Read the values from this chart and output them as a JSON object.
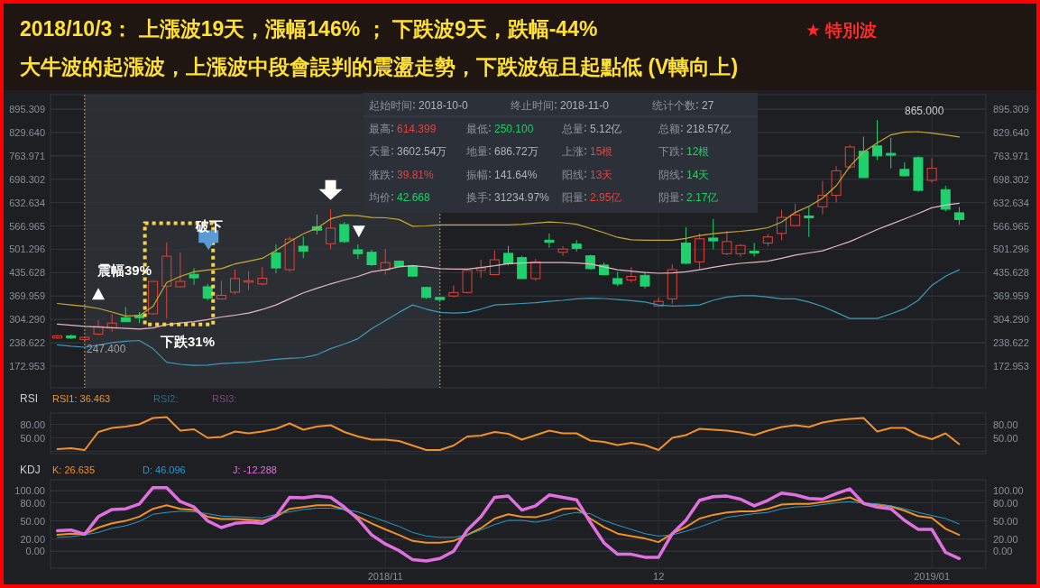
{
  "chart_data": [
    {
      "type": "candlestick",
      "title": "2018/10/3： 上漲波19天，漲幅146% ； 下跌波9天，跌幅-44%",
      "subtitle": "大牛波的起漲波，上漲波中段會誤判的震盪走勢，下跌波短且起點低 (V轉向上)",
      "categories": [
        null,
        null,
        null,
        null,
        null,
        null,
        null,
        null,
        null,
        null,
        null,
        null,
        null,
        null,
        null,
        null,
        null,
        null,
        null,
        null,
        null,
        null,
        null,
        null,
        "2018/11",
        null,
        null,
        null,
        null,
        null,
        null,
        null,
        null,
        null,
        null,
        null,
        null,
        null,
        null,
        null,
        null,
        null,
        null,
        null,
        "12",
        null,
        null,
        null,
        null,
        null,
        null,
        null,
        null,
        null,
        null,
        null,
        null,
        null,
        null,
        null,
        null,
        null,
        null,
        null,
        "2019/01",
        null,
        null
      ],
      "ohlc": [
        [
          252,
          260,
          250,
          258
        ],
        [
          258,
          262,
          249,
          252
        ],
        [
          248,
          256,
          247.4,
          254
        ],
        [
          263,
          302,
          260,
          284
        ],
        [
          280,
          319,
          269,
          294
        ],
        [
          309,
          339,
          297,
          298
        ],
        [
          315,
          325,
          294,
          309
        ],
        [
          320,
          412,
          318,
          411
        ],
        [
          398,
          520,
          307,
          482
        ],
        [
          396,
          493,
          395,
          411
        ],
        [
          431,
          448,
          402,
          421
        ],
        [
          396,
          404,
          358,
          364
        ],
        [
          362,
          413,
          360,
          372
        ],
        [
          381,
          444,
          375,
          419
        ],
        [
          409,
          440,
          387,
          413
        ],
        [
          404,
          451,
          400,
          420
        ],
        [
          491,
          515,
          434,
          449
        ],
        [
          444,
          537,
          438,
          530
        ],
        [
          510,
          537,
          476,
          496
        ],
        [
          565,
          599,
          543,
          555
        ],
        [
          517,
          614,
          502,
          561
        ],
        [
          571,
          578,
          519,
          523
        ],
        [
          500,
          515,
          474,
          489
        ],
        [
          493,
          500,
          455,
          458
        ],
        [
          443,
          502,
          430,
          464
        ],
        [
          468,
          470,
          450,
          453
        ],
        [
          455,
          458,
          424,
          426
        ],
        [
          394,
          396,
          362,
          366
        ],
        [
          366,
          367,
          359,
          360
        ],
        [
          370,
          400,
          366,
          380
        ],
        [
          380,
          444,
          377,
          442
        ],
        [
          442,
          472,
          421,
          449
        ],
        [
          430,
          498,
          428,
          472
        ],
        [
          490,
          511,
          456,
          461
        ],
        [
          478,
          483,
          418,
          419
        ],
        [
          419,
          474,
          413,
          466
        ],
        [
          527,
          546,
          506,
          521
        ],
        [
          493,
          510,
          483,
          502
        ],
        [
          516,
          527,
          495,
          504
        ],
        [
          483,
          486,
          444,
          447
        ],
        [
          457,
          464,
          428,
          430
        ],
        [
          419,
          438,
          398,
          404
        ],
        [
          415,
          451,
          408,
          425
        ],
        [
          428,
          438,
          391,
          398
        ],
        [
          342,
          366,
          341,
          355
        ],
        [
          362,
          459,
          348,
          444
        ],
        [
          519,
          563,
          460,
          462
        ],
        [
          466,
          546,
          444,
          531
        ],
        [
          533,
          587,
          501,
          525
        ],
        [
          489,
          553,
          485,
          523
        ],
        [
          489,
          516,
          481,
          512
        ],
        [
          496,
          519,
          481,
          491
        ],
        [
          519,
          544,
          510,
          536
        ],
        [
          546,
          612,
          527,
          591
        ],
        [
          568,
          630,
          566,
          598
        ],
        [
          595,
          621,
          536,
          590
        ],
        [
          621,
          693,
          600,
          653
        ],
        [
          653,
          735,
          633,
          722
        ],
        [
          733,
          795,
          728,
          789
        ],
        [
          777,
          818,
          703,
          703
        ],
        [
          792,
          865,
          752,
          764
        ],
        [
          771,
          815,
          729,
          766
        ],
        [
          726,
          746,
          706,
          708
        ],
        [
          759,
          763,
          663,
          667
        ],
        [
          695,
          758,
          688,
          729
        ],
        [
          669,
          680,
          608,
          614
        ],
        [
          604,
          620,
          570,
          585
        ]
      ],
      "series": [
        {
          "type": "line",
          "color": "#c8a832",
          "values": [
            349,
            345,
            341,
            335,
            325,
            314,
            315,
            341,
            408,
            425,
            438,
            443,
            447,
            460,
            468,
            476,
            498,
            523,
            545,
            561,
            587,
            597,
            596,
            591,
            590,
            585,
            566,
            567,
            570,
            570,
            570,
            570,
            570,
            570,
            572,
            575,
            578,
            576,
            572,
            560,
            548,
            535,
            528,
            527,
            527,
            527,
            532,
            540,
            545,
            549,
            552,
            556,
            562,
            578,
            605,
            622,
            645,
            680,
            735,
            775,
            800,
            823,
            831,
            832,
            828,
            823,
            817
          ]
        },
        {
          "type": "line",
          "color": "#e6b6c6",
          "values": [
            291,
            288,
            285,
            283,
            281,
            279,
            277,
            280,
            290,
            294,
            298,
            304,
            311,
            316,
            322,
            332,
            345,
            362,
            379,
            392,
            404,
            415,
            425,
            438,
            444,
            452,
            455,
            452,
            447,
            446,
            446,
            450,
            455,
            461,
            463,
            464,
            464,
            464,
            463,
            460,
            452,
            444,
            440,
            436,
            434,
            435,
            438,
            444,
            451,
            457,
            462,
            465,
            468,
            476,
            485,
            491,
            497,
            510,
            523,
            540,
            557,
            572,
            587,
            602,
            618,
            626,
            631
          ]
        },
        {
          "type": "line",
          "color": "#3a9ab8",
          "values": [
            233,
            229,
            226,
            232,
            239,
            243,
            245,
            222,
            184,
            178,
            175,
            176,
            180,
            182,
            184,
            188,
            192,
            195,
            197,
            205,
            222,
            235,
            250,
            278,
            301,
            324,
            345,
            333,
            324,
            322,
            324,
            333,
            345,
            347,
            349,
            351,
            355,
            358,
            362,
            364,
            363,
            360,
            357,
            353,
            345,
            342,
            343,
            345,
            358,
            367,
            371,
            371,
            367,
            362,
            362,
            353,
            341,
            324,
            307,
            307,
            307,
            320,
            334,
            358,
            400,
            426,
            444
          ]
        }
      ],
      "ylim": [
        112,
        936
      ],
      "yticks": [
        172.953,
        238.622,
        {
          "value": 304.29,
          "label": "304.290"
        },
        369.959,
        435.628,
        501.296,
        566.965,
        632.634,
        698.302,
        763.971,
        {
          "value": 829.64,
          "label": "829.640"
        },
        895.309
      ],
      "y2lim": [
        112,
        936
      ],
      "y2ticks": [
        172.953,
        238.622,
        {
          "value": 304.29,
          "label": "304.290"
        },
        369.959,
        435.628,
        501.296,
        566.965,
        632.634,
        698.302,
        763.971,
        {
          "value": 829.64,
          "label": "829.640"
        },
        895.309
      ],
      "grid": true,
      "tick_labels": "y",
      "annotations": [
        "★ 特別波",
        "震幅39%",
        "破下",
        "下跌31%",
        "865.000",
        "247.400"
      ]
    },
    {
      "type": "line",
      "title": "RSI",
      "categories": [
        null,
        null,
        null,
        null,
        null,
        null,
        null,
        null,
        null,
        null,
        null,
        null,
        null,
        null,
        null,
        null,
        null,
        null,
        null,
        null,
        null,
        null,
        null,
        null,
        "2018/11",
        null,
        null,
        null,
        null,
        null,
        null,
        null,
        null,
        null,
        null,
        null,
        null,
        null,
        null,
        null,
        null,
        null,
        null,
        null,
        "12",
        null,
        null,
        null,
        null,
        null,
        null,
        null,
        null,
        null,
        null,
        null,
        null,
        null,
        null,
        null,
        null,
        null,
        null,
        null,
        "2019/01",
        null,
        null
      ],
      "series": [
        {
          "name": "RSI1: 36.463",
          "color": "#f0902a",
          "values": [
            25,
            27,
            23,
            63,
            72,
            75,
            80,
            94,
            96,
            66,
            69,
            50,
            52,
            64,
            60,
            64,
            70,
            82,
            68,
            75,
            78,
            63,
            53,
            46,
            46,
            43,
            33,
            23,
            23,
            33,
            53,
            55,
            63,
            59,
            46,
            56,
            66,
            60,
            60,
            44,
            41,
            34,
            39,
            34,
            23,
            50,
            56,
            70,
            68,
            66,
            62,
            56,
            66,
            74,
            78,
            74,
            84,
            89,
            92,
            94,
            64,
            72,
            72,
            56,
            47,
            60,
            36
          ]
        }
      ],
      "ylim": [
        15,
        105
      ],
      "yticks": [
        {
          "value": 20,
          "label": null
        },
        {
          "value": 50,
          "label": "50.00"
        },
        {
          "value": 80,
          "label": "80.00"
        }
      ],
      "y2lim": [
        15,
        105
      ],
      "y2ticks": [
        {
          "value": 20,
          "label": null
        },
        {
          "value": 50,
          "label": "50.00"
        },
        {
          "value": 80,
          "label": "80.00"
        }
      ],
      "grid": true,
      "tick_labels": "y",
      "legend": "top left",
      "annotations": [
        "RSI2:",
        "RSI3:"
      ]
    },
    {
      "type": "line",
      "title": "KDJ",
      "categories": [
        null,
        null,
        null,
        null,
        null,
        null,
        null,
        null,
        null,
        null,
        null,
        null,
        null,
        null,
        null,
        null,
        null,
        null,
        null,
        null,
        null,
        null,
        null,
        null,
        "2018/11",
        null,
        null,
        null,
        null,
        null,
        null,
        null,
        null,
        null,
        null,
        null,
        null,
        null,
        null,
        null,
        null,
        null,
        null,
        null,
        "12",
        null,
        null,
        null,
        null,
        null,
        null,
        null,
        null,
        null,
        null,
        null,
        null,
        null,
        null,
        null,
        null,
        null,
        null,
        null,
        "2019/01",
        null,
        null
      ],
      "series": [
        {
          "name": "K: 26.635",
          "color": "#f0902a",
          "values": [
            27,
            29,
            28,
            39,
            46,
            50,
            57,
            70,
            76,
            70,
            68,
            57,
            53,
            53,
            52,
            50,
            57,
            70,
            73,
            76,
            76,
            69,
            57,
            46,
            36,
            27,
            17,
            14,
            14,
            17,
            27,
            38,
            54,
            61,
            57,
            56,
            62,
            70,
            71,
            54,
            40,
            29,
            25,
            21,
            15,
            29,
            40,
            54,
            60,
            64,
            66,
            66,
            70,
            77,
            78,
            78,
            81,
            84,
            89,
            79,
            77,
            74,
            67,
            58,
            55,
            37,
            27
          ]
        },
        {
          "name": "D: 46.096",
          "color": "#2a9ac8",
          "values": [
            23,
            24,
            27,
            31,
            38,
            42,
            49,
            61,
            64,
            66,
            65,
            62,
            58,
            57,
            56,
            55,
            61,
            65,
            69,
            71,
            71,
            69,
            65,
            57,
            49,
            41,
            31,
            25,
            23,
            23,
            27,
            35,
            44,
            51,
            51,
            48,
            52,
            60,
            64,
            62,
            51,
            43,
            36,
            29,
            25,
            27,
            33,
            40,
            48,
            56,
            59,
            62,
            64,
            70,
            73,
            74,
            77,
            80,
            82,
            79,
            78,
            75,
            70,
            64,
            59,
            54,
            45
          ]
        },
        {
          "name": "J: -12.288",
          "color": "#e070e0",
          "values": [
            34,
            35,
            28,
            57,
            69,
            70,
            78,
            105,
            105,
            82,
            73,
            50,
            39,
            46,
            48,
            46,
            58,
            89,
            88,
            91,
            89,
            73,
            53,
            27,
            12,
            1,
            -14,
            -16,
            -12,
            0,
            35,
            57,
            89,
            91,
            68,
            75,
            93,
            89,
            85,
            48,
            14,
            -5,
            -5,
            -10,
            -10,
            29,
            51,
            84,
            90,
            91,
            86,
            75,
            84,
            96,
            93,
            87,
            86,
            95,
            103,
            79,
            73,
            70,
            51,
            36,
            36,
            -2,
            -12
          ]
        }
      ],
      "ylim": [
        -28,
        118
      ],
      "yticks": [
        {
          "value": 0,
          "label": "0.00"
        },
        {
          "value": 20,
          "label": "20.00"
        },
        {
          "value": 50,
          "label": "50.00"
        },
        {
          "value": 80,
          "label": "80.00"
        },
        {
          "value": 100,
          "label": "100.00"
        }
      ],
      "y2lim": [
        -28,
        118
      ],
      "y2ticks": [
        {
          "value": 0,
          "label": "0.00"
        },
        {
          "value": 20,
          "label": "20.00"
        },
        {
          "value": 50,
          "label": "50.00"
        },
        {
          "value": 80,
          "label": "80.00"
        },
        {
          "value": 100,
          "label": "100.00"
        }
      ],
      "grid": true,
      "legend": "top left"
    },
    {
      "type": "other",
      "categories": [
        "起始时间",
        "终止时间",
        "统计个数",
        "最高",
        "最低",
        "总量",
        "总额",
        "天量",
        "地量",
        "上涨",
        "下跌",
        "涨跌",
        "振幅",
        "阳线",
        "阴线",
        "均价",
        "换手",
        "阳量",
        "阴量"
      ],
      "value_labels": [
        "2018-10-0",
        "2018-11-0",
        "27",
        "614.399",
        "250.100",
        "5.12亿",
        "218.57亿",
        "3602.54万",
        "686.72万",
        "15根",
        "12根",
        "39.81%",
        "141.64%",
        "13天",
        "14天",
        "42.668",
        "31234.97%",
        "2.95亿",
        "2.17亿"
      ],
      "colors": [
        "#aeb3bb",
        "#aeb3bb",
        "#aeb3bb",
        "#e8413c",
        "#1ecf68",
        "#aeb3bb",
        "#aeb3bb",
        "#aeb3bb",
        "#aeb3bb",
        "#e8413c",
        "#1ecf68",
        "#e8413c",
        "#aeb3bb",
        "#e8413c",
        "#1ecf68",
        "#1ecf68",
        "#aeb3bb",
        "#e8413c",
        "#1ecf68"
      ]
    }
  ]
}
